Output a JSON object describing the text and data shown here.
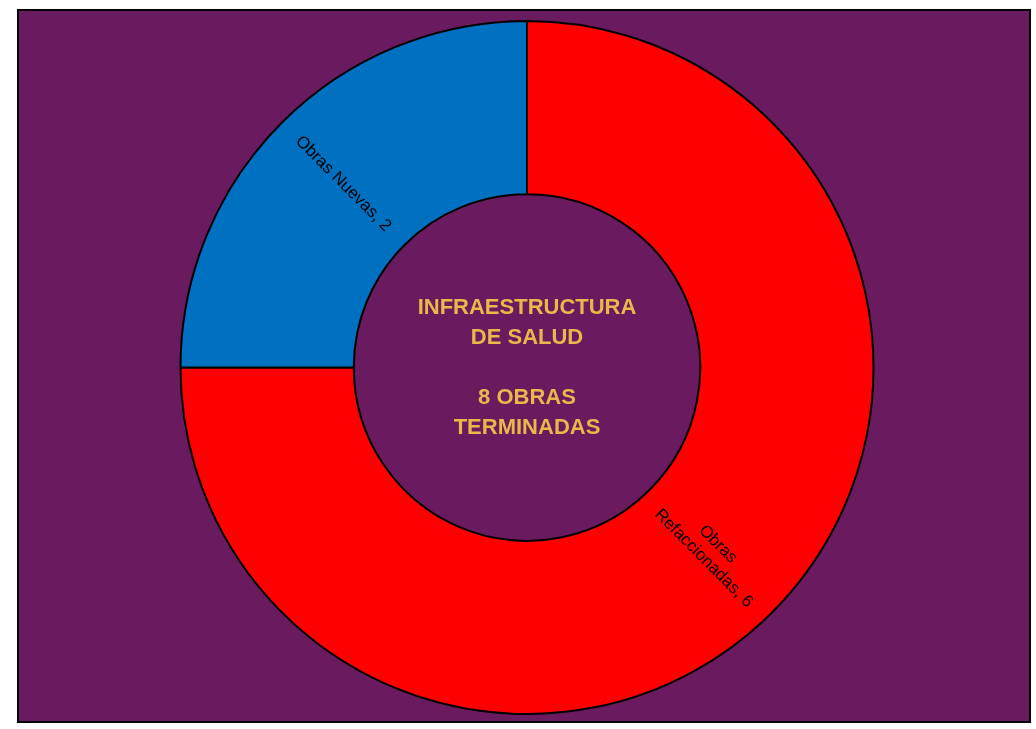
{
  "chart_data": {
    "type": "donut",
    "title": "INFRAESTRUCTURA DE SALUD",
    "subtitle": "8 OBRAS TERMINADAS",
    "categories": [
      null,
      null
    ],
    "values": [
      6,
      2
    ],
    "colors": [
      "#ff0000",
      "#0070c0"
    ],
    "value_labels": [
      "Obras Refaccionadas, 6",
      "Obras Nuevas, 2"
    ],
    "legend": false
  }
}
